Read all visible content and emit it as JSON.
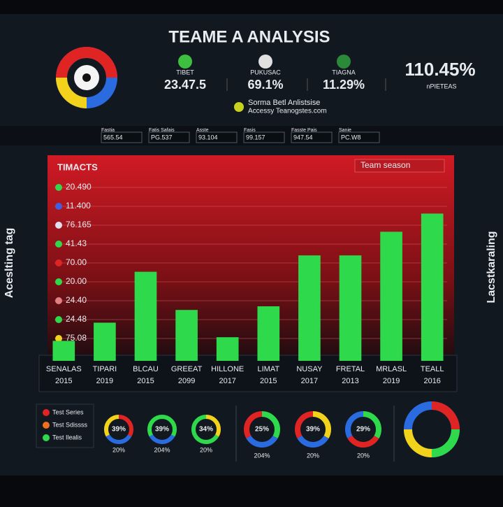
{
  "header": {
    "title": "TEAME A ANALYSIS",
    "subtitle": "Sorma Betl Anlistsise",
    "link": "Accessy Teanogstes.com"
  },
  "stats": [
    {
      "label": "TIBET",
      "value": "23.47.5"
    },
    {
      "label": "PUKUSAC",
      "value": "69.1%"
    },
    {
      "label": "TIAGNA",
      "value": "11.29%"
    },
    {
      "label": "nPIETEAS",
      "value": "110.45%"
    }
  ],
  "filters": [
    {
      "label": "Fastia",
      "value": "565.54"
    },
    {
      "label": "Fatis Safais",
      "value": "PG.537"
    },
    {
      "label": "Asste",
      "value": "93.104"
    },
    {
      "label": "Fasis",
      "value": "99.157"
    },
    {
      "label": "Fasste Pais",
      "value": "947.54"
    },
    {
      "label": "Sanie",
      "value": "PC.W8"
    }
  ],
  "side": {
    "left": "Aceslting tag",
    "right": "Lacstkaraling"
  },
  "chart_data": {
    "type": "bar",
    "title": "TIMACTS",
    "button": "Team season",
    "row_labels": [
      "20.490",
      "11.400",
      "76.165",
      "41.43",
      "70.00",
      "20.00",
      "24.40",
      "24.48",
      "75.08"
    ],
    "categories": [
      "SENALAS 2015",
      "TIPARI 2019",
      "BLCAU 2015",
      "GREEAT 2099",
      "HILLONE 2017",
      "LIMAT 2015",
      "NUSAY 2017",
      "FRETAL 2013",
      "MRLASL 2019",
      "TEALL 2016"
    ],
    "values": [
      11,
      21,
      49,
      28,
      13,
      30,
      58,
      58,
      71,
      81
    ],
    "color": "#2fd94c",
    "ylim": [
      0,
      100
    ]
  },
  "legend": [
    "Test Series",
    "Test Sdissss",
    "Test Ilealis"
  ],
  "donuts": [
    {
      "label": "39%",
      "sub": "20%"
    },
    {
      "label": "39%",
      "sub": "204%"
    },
    {
      "label": "34%",
      "sub": "20%"
    },
    {
      "label": "25%",
      "sub": "204%"
    },
    {
      "label": "39%",
      "sub": "20%"
    },
    {
      "label": "29%",
      "sub": "20%"
    }
  ]
}
